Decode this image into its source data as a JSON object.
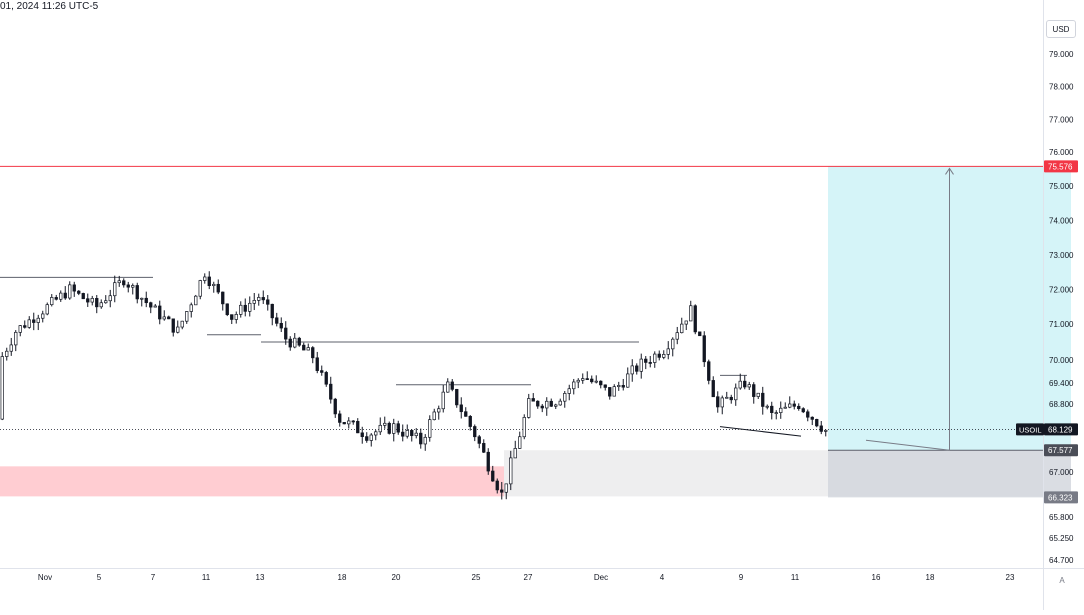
{
  "header": {
    "text": "01, 2024 11:26 UTC-5"
  },
  "price_axis": {
    "currency": "USD",
    "auto_label": "A",
    "ticks": [
      "79.000",
      "78.000",
      "77.000",
      "76.000",
      "75.000",
      "74.000",
      "73.000",
      "72.000",
      "71.000",
      "70.000",
      "69.400",
      "68.800",
      "67.000",
      "65.800",
      "65.250",
      "64.700"
    ]
  },
  "time_axis": {
    "labels": [
      "Nov",
      "5",
      "7",
      "11",
      "13",
      "18",
      "20",
      "25",
      "27",
      "Dec",
      "4",
      "9",
      "11",
      "16",
      "18",
      "23"
    ]
  },
  "colors": {
    "candle": "#131722",
    "target_line": "#f23645",
    "target_zone": "#b2ebf2",
    "stop_zone": "#d1d4dc",
    "demand_zone": "#ffcdd2",
    "range_zone": "#eeeeef",
    "current_price_badge": "#131722",
    "entry_badge": "#4a4d57",
    "stop_badge": "#787b86"
  },
  "chart_data": {
    "type": "candlestick",
    "symbol": "USOIL",
    "price_labels": {
      "current": "68.129",
      "target": "75.576",
      "entry": "67.577",
      "stop": "66.323"
    },
    "current_price": 68.129,
    "target_price": 75.576,
    "entry_price": 67.577,
    "stop_price": 66.323,
    "position": {
      "side": "long",
      "start_date": "2024-11-30",
      "end_date": "2024-12-09",
      "entry": 67.577,
      "target": 75.576,
      "stop": 66.323
    },
    "zones": [
      {
        "kind": "demand",
        "start_date": "2024-10-24",
        "end_date": "2024-11-18",
        "low": 66.35,
        "high": 67.15
      },
      {
        "kind": "range",
        "start_date": "2024-11-18",
        "end_date": "2024-12-23",
        "low": 66.35,
        "high": 67.577
      }
    ],
    "level_lines": [
      {
        "start_date": "2024-10-24",
        "end_date": "2024-11-05",
        "price": 72.35
      },
      {
        "start_date": "2024-11-07",
        "end_date": "2024-11-09",
        "price": 70.7
      },
      {
        "start_date": "2024-11-09",
        "end_date": "2024-11-23",
        "price": 70.5
      },
      {
        "start_date": "2024-11-14",
        "end_date": "2024-11-19",
        "price": 69.35
      },
      {
        "start_date": "2024-11-26",
        "end_date": "2024-11-27",
        "price": 69.6
      }
    ],
    "trend_lines": [
      {
        "start_date": "2024-11-26",
        "start_price": 68.2,
        "end_date": "2024-11-29",
        "end_price": 67.95
      }
    ],
    "path": [
      [
        "2024-10-24",
        68.4
      ],
      [
        "2024-10-25",
        69.0
      ],
      [
        "2024-10-26",
        68.9
      ],
      [
        "2024-10-27",
        69.6
      ],
      [
        "2024-10-28",
        70.6
      ],
      [
        "2024-10-29",
        71.3
      ],
      [
        "2024-10-30",
        69.4
      ],
      [
        "2024-10-31",
        70.8
      ],
      [
        "2024-11-01",
        71.4
      ],
      [
        "2024-11-02",
        72.0
      ],
      [
        "2024-11-03",
        71.5
      ],
      [
        "2024-11-04",
        72.3
      ],
      [
        "2024-11-05",
        71.5
      ],
      [
        "2024-11-06",
        70.8
      ],
      [
        "2024-11-07",
        72.5
      ],
      [
        "2024-11-08",
        71.2
      ],
      [
        "2024-11-09",
        71.8
      ],
      [
        "2024-11-10",
        70.6
      ],
      [
        "2024-11-11",
        70.1
      ],
      [
        "2024-11-12",
        68.4
      ],
      [
        "2024-11-13",
        68.0
      ],
      [
        "2024-11-14",
        68.2
      ],
      [
        "2024-11-15",
        67.8
      ],
      [
        "2024-11-16",
        69.3
      ],
      [
        "2024-11-17",
        68.0
      ],
      [
        "2024-11-18",
        66.4
      ],
      [
        "2024-11-19",
        68.8
      ],
      [
        "2024-11-20",
        68.9
      ],
      [
        "2024-11-21",
        69.6
      ],
      [
        "2024-11-22",
        69.1
      ],
      [
        "2024-11-23",
        69.8
      ],
      [
        "2024-11-24",
        70.3
      ],
      [
        "2024-11-25",
        71.4
      ],
      [
        "2024-11-26",
        68.7
      ],
      [
        "2024-11-27",
        69.4
      ],
      [
        "2024-11-28",
        68.5
      ],
      [
        "2024-11-29",
        68.8
      ],
      [
        "2024-11-30",
        68.1
      ]
    ]
  }
}
